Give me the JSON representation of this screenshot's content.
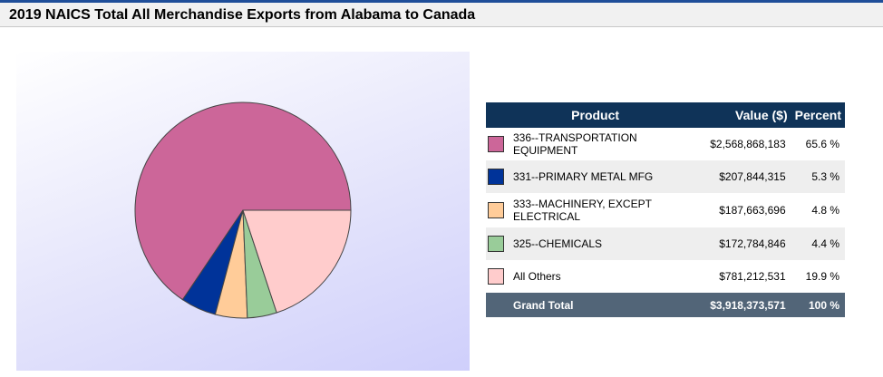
{
  "page": {
    "title": "2019 NAICS Total All Merchandise Exports from Alabama to Canada",
    "accent_color": "#1f4e99"
  },
  "table": {
    "headers": {
      "product": "Product",
      "value": "Value ($)",
      "percent": "Percent"
    },
    "rows": [
      {
        "product": "336--TRANSPORTATION EQUIPMENT",
        "value": "$2,568,868,183",
        "percent": "65.6 %",
        "color": "#cc6699"
      },
      {
        "product": "331--PRIMARY METAL MFG",
        "value": "$207,844,315",
        "percent": "5.3 %",
        "color": "#003399"
      },
      {
        "product": "333--MACHINERY, EXCEPT ELECTRICAL",
        "value": "$187,663,696",
        "percent": "4.8 %",
        "color": "#ffcc99"
      },
      {
        "product": "325--CHEMICALS",
        "value": "$172,784,846",
        "percent": "4.4 %",
        "color": "#99cc99"
      },
      {
        "product": "All Others",
        "value": "$781,212,531",
        "percent": "19.9 %",
        "color": "#ffcccc"
      }
    ],
    "total": {
      "label": "Grand Total",
      "value": "$3,918,373,571",
      "percent": "100 %"
    }
  },
  "chart_data": {
    "type": "pie",
    "categories": [
      "336--TRANSPORTATION EQUIPMENT",
      "331--PRIMARY METAL MFG",
      "333--MACHINERY, EXCEPT ELECTRICAL",
      "325--CHEMICALS",
      "All Others"
    ],
    "values": [
      2568868183,
      207844315,
      187663696,
      172784846,
      781212531
    ],
    "colors": [
      "#cc6699",
      "#003399",
      "#ffcc99",
      "#99cc99",
      "#ffcccc"
    ],
    "start_angle_deg": 0,
    "direction": "counterclockwise",
    "title": ""
  }
}
